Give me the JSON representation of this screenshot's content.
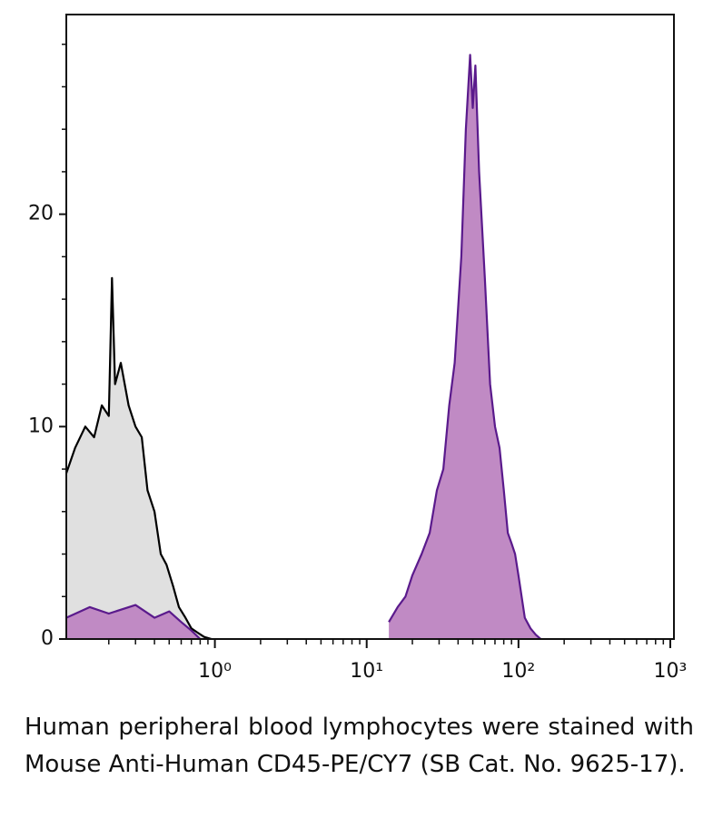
{
  "chart_data": {
    "type": "histogram_overlay",
    "xscale": "log",
    "xlim": [
      0.105,
      1057
    ],
    "ylim": [
      0,
      29.4
    ],
    "xticks": [
      {
        "value": 1,
        "label": "10⁰"
      },
      {
        "value": 10,
        "label": "10¹"
      },
      {
        "value": 100,
        "label": "10²"
      },
      {
        "value": 1000,
        "label": "10³"
      }
    ],
    "xminor_ticks": [
      0.2,
      0.3,
      0.4,
      0.5,
      0.6,
      0.7,
      0.8,
      0.9,
      2,
      3,
      4,
      5,
      6,
      7,
      8,
      9,
      20,
      30,
      40,
      50,
      60,
      70,
      80,
      90,
      200,
      300,
      400,
      500,
      600,
      700,
      800,
      900
    ],
    "yticks": [
      0,
      10,
      20
    ],
    "yminor_ticks": [
      2,
      4,
      6,
      8,
      12,
      14,
      16,
      18,
      22,
      24,
      26,
      28
    ],
    "series": [
      {
        "color": "#000000",
        "fill": "#e0e0e0",
        "x": [
          0.105,
          0.12,
          0.14,
          0.16,
          0.18,
          0.2,
          0.21,
          0.22,
          0.24,
          0.27,
          0.3,
          0.33,
          0.36,
          0.4,
          0.44,
          0.48,
          0.53,
          0.58,
          0.64,
          0.7,
          0.77,
          0.85,
          0.95
        ],
        "values": [
          7.8,
          9,
          10,
          9.5,
          11,
          10.5,
          17,
          12,
          13,
          11,
          10,
          9.5,
          7,
          6,
          4,
          3.5,
          2.5,
          1.5,
          1,
          0.5,
          0.3,
          0.1,
          0
        ]
      },
      {
        "color": "#5a1a8c",
        "fill": "#c08ac4",
        "x": [
          0.105,
          0.15,
          0.2,
          0.3,
          0.4,
          0.5,
          0.6,
          0.7,
          0.8,
          12,
          14,
          16,
          18,
          20,
          23,
          26,
          29,
          32,
          35,
          38,
          42,
          45,
          48,
          50,
          52,
          55,
          60,
          65,
          70,
          75,
          80,
          85,
          90,
          95,
          100,
          110,
          120,
          130,
          140
        ],
        "values": [
          1,
          1.5,
          1.2,
          1.6,
          1,
          1.3,
          0.8,
          0.4,
          0,
          null,
          0.8,
          1.5,
          2,
          3,
          4,
          5,
          7,
          8,
          11,
          13,
          18,
          24,
          27.5,
          25,
          27,
          22,
          17,
          12,
          10,
          9,
          7,
          5,
          4.5,
          4,
          3,
          1,
          0.5,
          0.2,
          0
        ]
      }
    ]
  },
  "caption": "Human peripheral blood lymphocytes were stained with Mouse Anti-Human CD45-PE/CY7 (SB Cat. No. 9625-17)."
}
